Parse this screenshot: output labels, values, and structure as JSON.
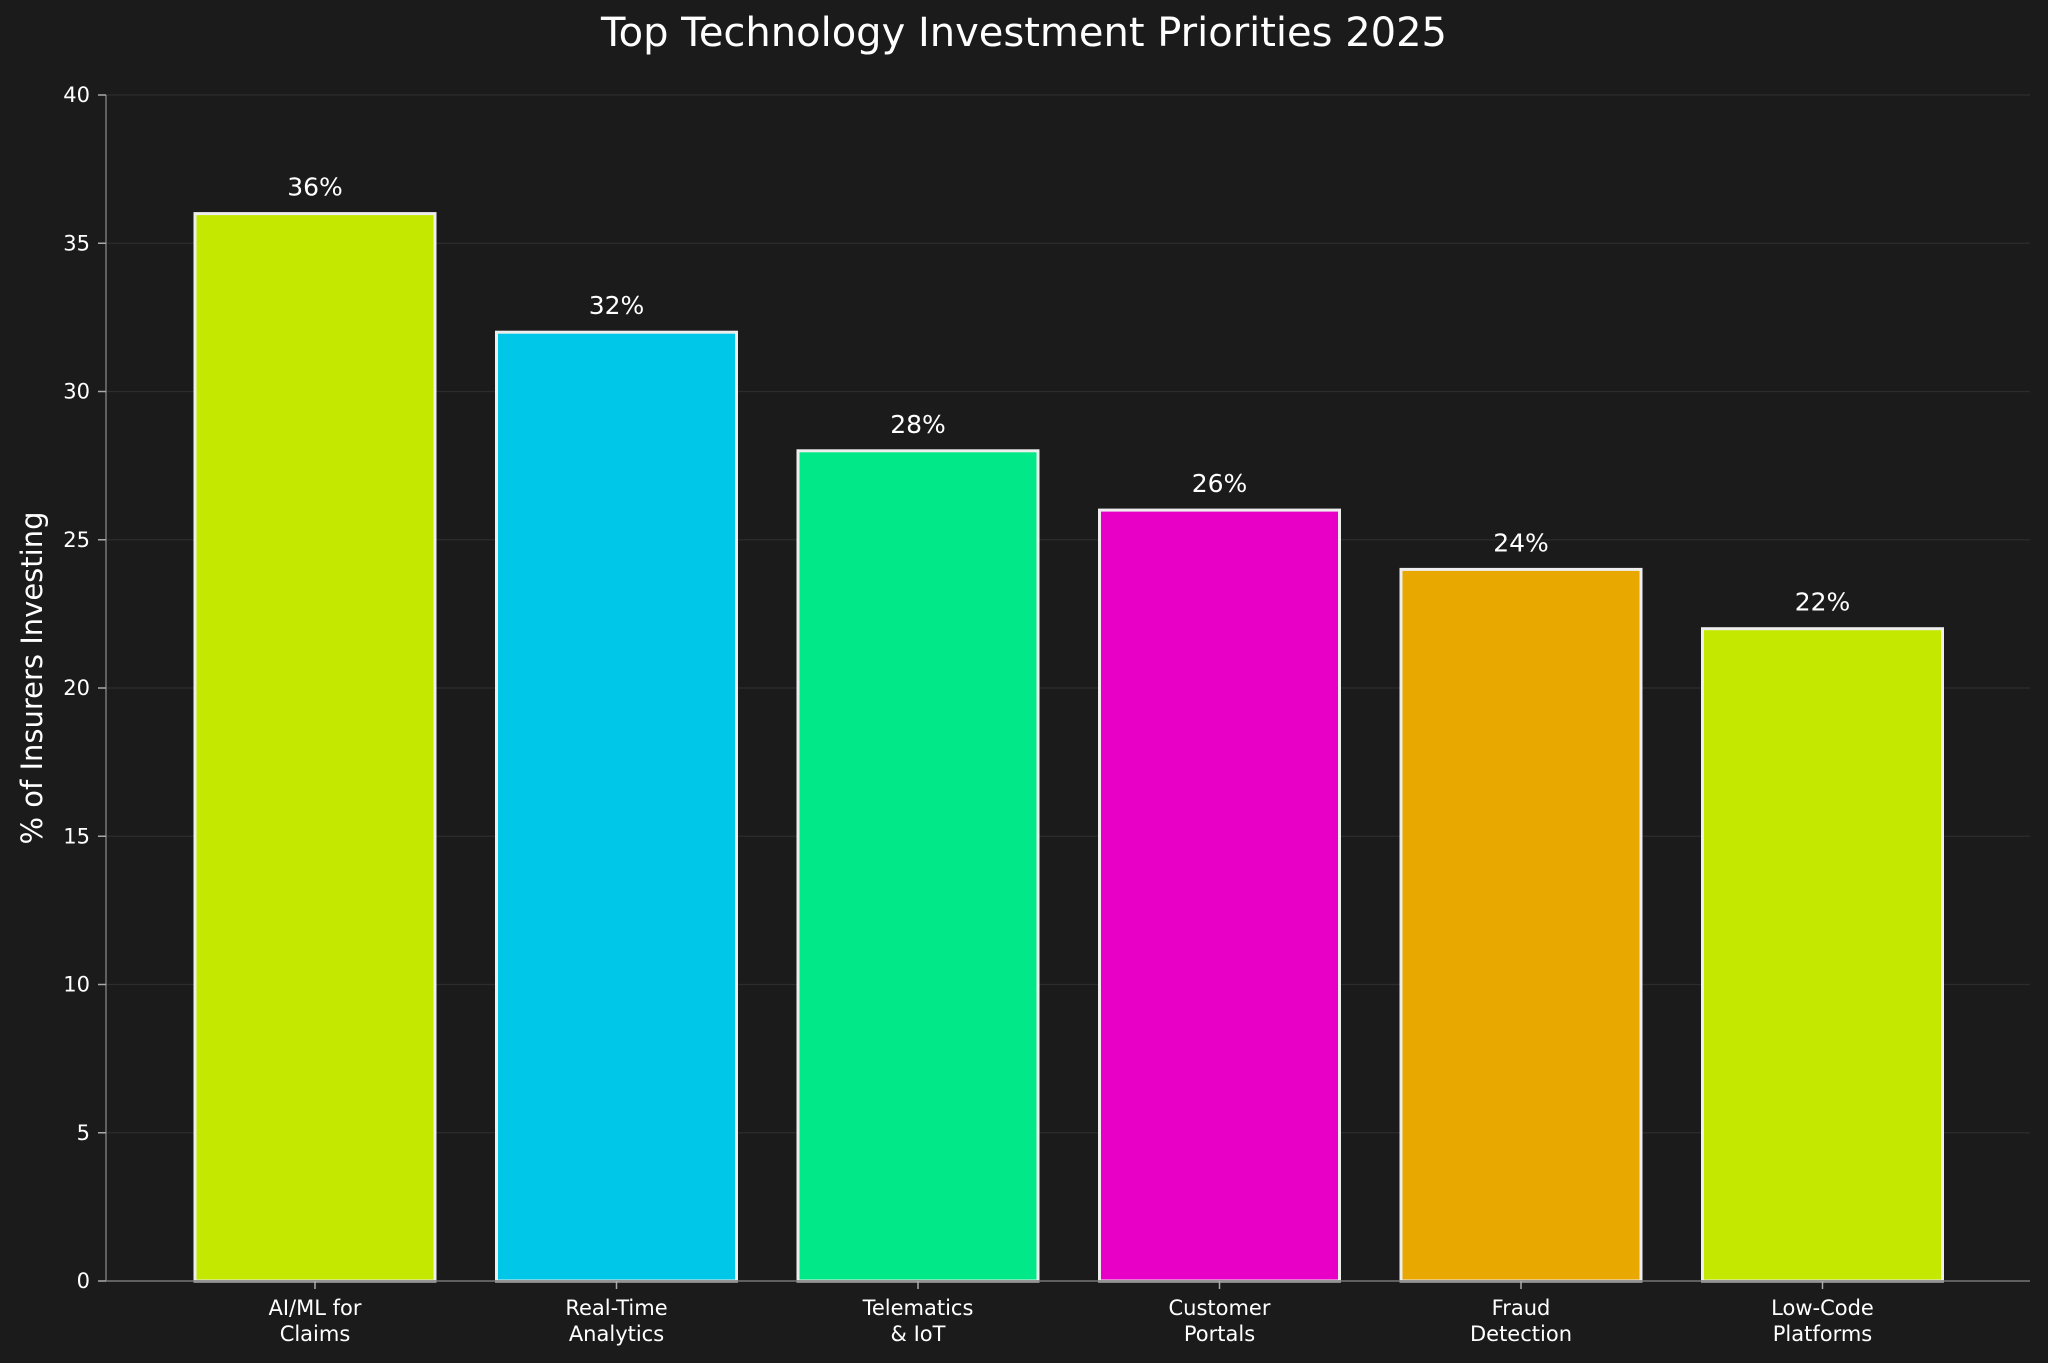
{
  "chart_data": {
    "type": "bar",
    "title": "Top Technology Investment Priorities 2025",
    "xlabel": "",
    "ylabel": "% of Insurers Investing",
    "ylim": [
      0,
      40
    ],
    "yticks": [
      0,
      5,
      10,
      15,
      20,
      25,
      30,
      35,
      40
    ],
    "grid": true,
    "categories": [
      [
        "AI/ML for",
        "Claims"
      ],
      [
        "Real-Time",
        "Analytics"
      ],
      [
        "Telematics",
        "& IoT"
      ],
      [
        "Customer",
        "Portals"
      ],
      [
        "Fraud",
        "Detection"
      ],
      [
        "Low-Code",
        "Platforms"
      ]
    ],
    "values": [
      36,
      32,
      28,
      26,
      24,
      22
    ],
    "data_labels": [
      "36%",
      "32%",
      "28%",
      "26%",
      "24%",
      "22%"
    ],
    "colors": [
      "#c4e800",
      "#00c6e8",
      "#00e887",
      "#e800c6",
      "#e8a800",
      "#c4e800"
    ],
    "bar_edge_color": "#eeeeee",
    "background": "#1b1b1b"
  }
}
